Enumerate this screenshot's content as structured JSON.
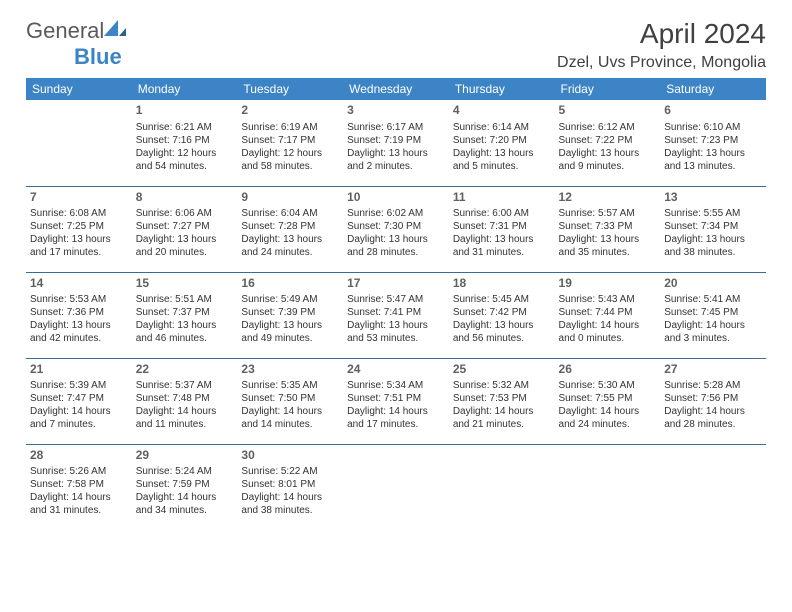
{
  "logo": {
    "text1": "General",
    "text2": "Blue"
  },
  "title": "April 2024",
  "location": "Dzel, Uvs Province, Mongolia",
  "colors": {
    "header_bg": "#3d84c6",
    "header_text": "#ffffff",
    "cell_border": "#3d6a94",
    "text": "#333333",
    "title_color": "#404040",
    "logo_gray": "#5a5a5a",
    "logo_blue": "#3d84c6"
  },
  "weekdays": [
    "Sunday",
    "Monday",
    "Tuesday",
    "Wednesday",
    "Thursday",
    "Friday",
    "Saturday"
  ],
  "weeks": [
    [
      null,
      {
        "d": "1",
        "sr": "Sunrise: 6:21 AM",
        "ss": "Sunset: 7:16 PM",
        "dl": "Daylight: 12 hours and 54 minutes."
      },
      {
        "d": "2",
        "sr": "Sunrise: 6:19 AM",
        "ss": "Sunset: 7:17 PM",
        "dl": "Daylight: 12 hours and 58 minutes."
      },
      {
        "d": "3",
        "sr": "Sunrise: 6:17 AM",
        "ss": "Sunset: 7:19 PM",
        "dl": "Daylight: 13 hours and 2 minutes."
      },
      {
        "d": "4",
        "sr": "Sunrise: 6:14 AM",
        "ss": "Sunset: 7:20 PM",
        "dl": "Daylight: 13 hours and 5 minutes."
      },
      {
        "d": "5",
        "sr": "Sunrise: 6:12 AM",
        "ss": "Sunset: 7:22 PM",
        "dl": "Daylight: 13 hours and 9 minutes."
      },
      {
        "d": "6",
        "sr": "Sunrise: 6:10 AM",
        "ss": "Sunset: 7:23 PM",
        "dl": "Daylight: 13 hours and 13 minutes."
      }
    ],
    [
      {
        "d": "7",
        "sr": "Sunrise: 6:08 AM",
        "ss": "Sunset: 7:25 PM",
        "dl": "Daylight: 13 hours and 17 minutes."
      },
      {
        "d": "8",
        "sr": "Sunrise: 6:06 AM",
        "ss": "Sunset: 7:27 PM",
        "dl": "Daylight: 13 hours and 20 minutes."
      },
      {
        "d": "9",
        "sr": "Sunrise: 6:04 AM",
        "ss": "Sunset: 7:28 PM",
        "dl": "Daylight: 13 hours and 24 minutes."
      },
      {
        "d": "10",
        "sr": "Sunrise: 6:02 AM",
        "ss": "Sunset: 7:30 PM",
        "dl": "Daylight: 13 hours and 28 minutes."
      },
      {
        "d": "11",
        "sr": "Sunrise: 6:00 AM",
        "ss": "Sunset: 7:31 PM",
        "dl": "Daylight: 13 hours and 31 minutes."
      },
      {
        "d": "12",
        "sr": "Sunrise: 5:57 AM",
        "ss": "Sunset: 7:33 PM",
        "dl": "Daylight: 13 hours and 35 minutes."
      },
      {
        "d": "13",
        "sr": "Sunrise: 5:55 AM",
        "ss": "Sunset: 7:34 PM",
        "dl": "Daylight: 13 hours and 38 minutes."
      }
    ],
    [
      {
        "d": "14",
        "sr": "Sunrise: 5:53 AM",
        "ss": "Sunset: 7:36 PM",
        "dl": "Daylight: 13 hours and 42 minutes."
      },
      {
        "d": "15",
        "sr": "Sunrise: 5:51 AM",
        "ss": "Sunset: 7:37 PM",
        "dl": "Daylight: 13 hours and 46 minutes."
      },
      {
        "d": "16",
        "sr": "Sunrise: 5:49 AM",
        "ss": "Sunset: 7:39 PM",
        "dl": "Daylight: 13 hours and 49 minutes."
      },
      {
        "d": "17",
        "sr": "Sunrise: 5:47 AM",
        "ss": "Sunset: 7:41 PM",
        "dl": "Daylight: 13 hours and 53 minutes."
      },
      {
        "d": "18",
        "sr": "Sunrise: 5:45 AM",
        "ss": "Sunset: 7:42 PM",
        "dl": "Daylight: 13 hours and 56 minutes."
      },
      {
        "d": "19",
        "sr": "Sunrise: 5:43 AM",
        "ss": "Sunset: 7:44 PM",
        "dl": "Daylight: 14 hours and 0 minutes."
      },
      {
        "d": "20",
        "sr": "Sunrise: 5:41 AM",
        "ss": "Sunset: 7:45 PM",
        "dl": "Daylight: 14 hours and 3 minutes."
      }
    ],
    [
      {
        "d": "21",
        "sr": "Sunrise: 5:39 AM",
        "ss": "Sunset: 7:47 PM",
        "dl": "Daylight: 14 hours and 7 minutes."
      },
      {
        "d": "22",
        "sr": "Sunrise: 5:37 AM",
        "ss": "Sunset: 7:48 PM",
        "dl": "Daylight: 14 hours and 11 minutes."
      },
      {
        "d": "23",
        "sr": "Sunrise: 5:35 AM",
        "ss": "Sunset: 7:50 PM",
        "dl": "Daylight: 14 hours and 14 minutes."
      },
      {
        "d": "24",
        "sr": "Sunrise: 5:34 AM",
        "ss": "Sunset: 7:51 PM",
        "dl": "Daylight: 14 hours and 17 minutes."
      },
      {
        "d": "25",
        "sr": "Sunrise: 5:32 AM",
        "ss": "Sunset: 7:53 PM",
        "dl": "Daylight: 14 hours and 21 minutes."
      },
      {
        "d": "26",
        "sr": "Sunrise: 5:30 AM",
        "ss": "Sunset: 7:55 PM",
        "dl": "Daylight: 14 hours and 24 minutes."
      },
      {
        "d": "27",
        "sr": "Sunrise: 5:28 AM",
        "ss": "Sunset: 7:56 PM",
        "dl": "Daylight: 14 hours and 28 minutes."
      }
    ],
    [
      {
        "d": "28",
        "sr": "Sunrise: 5:26 AM",
        "ss": "Sunset: 7:58 PM",
        "dl": "Daylight: 14 hours and 31 minutes."
      },
      {
        "d": "29",
        "sr": "Sunrise: 5:24 AM",
        "ss": "Sunset: 7:59 PM",
        "dl": "Daylight: 14 hours and 34 minutes."
      },
      {
        "d": "30",
        "sr": "Sunrise: 5:22 AM",
        "ss": "Sunset: 8:01 PM",
        "dl": "Daylight: 14 hours and 38 minutes."
      },
      null,
      null,
      null,
      null
    ]
  ]
}
